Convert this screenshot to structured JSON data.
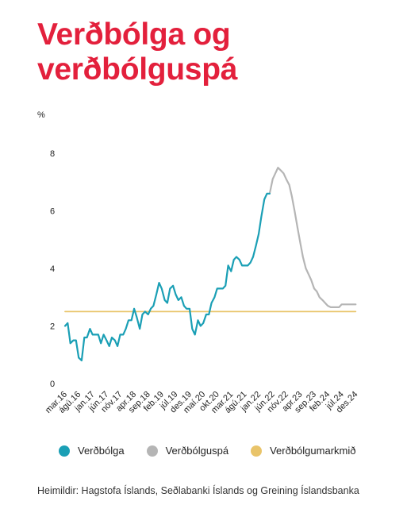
{
  "title_lines": [
    "Verðbólga og",
    "verðbólguspá"
  ],
  "source": "Heimildir: Hagstofa Íslands, Seðlabanki Íslands og Greining Íslandsbanka",
  "colors": {
    "title": "#e3203c",
    "inflation": "#1a9fb5",
    "forecast": "#b5b5b5",
    "target": "#e9c46a"
  },
  "chart_data": {
    "type": "line",
    "title": "Verðbólga og verðbólguspá",
    "ylabel": "%",
    "xlabel": "",
    "ylim": [
      0,
      8
    ],
    "yticks": [
      0,
      2,
      4,
      6,
      8
    ],
    "xlim": [
      2016.17,
      2024.96
    ],
    "xtick_labels": [
      {
        "label": "mar.16",
        "x": 2016.17
      },
      {
        "label": "ágú.16",
        "x": 2016.58
      },
      {
        "label": "jan.17",
        "x": 2017.0
      },
      {
        "label": "jún.17",
        "x": 2017.42
      },
      {
        "label": "nóv.17",
        "x": 2017.83
      },
      {
        "label": "apr.18",
        "x": 2018.25
      },
      {
        "label": "sep.18",
        "x": 2018.67
      },
      {
        "label": "feb.19",
        "x": 2019.08
      },
      {
        "label": "júl.19",
        "x": 2019.5
      },
      {
        "label": "des.19",
        "x": 2019.92
      },
      {
        "label": "maí.20",
        "x": 2020.33
      },
      {
        "label": "okt.20",
        "x": 2020.75
      },
      {
        "label": "mar.21",
        "x": 2021.17
      },
      {
        "label": "ágú.21",
        "x": 2021.58
      },
      {
        "label": "jan.22",
        "x": 2022.0
      },
      {
        "label": "jún.22",
        "x": 2022.42
      },
      {
        "label": "nóv.22",
        "x": 2022.83
      },
      {
        "label": "apr.23",
        "x": 2023.25
      },
      {
        "label": "sep.23",
        "x": 2023.67
      },
      {
        "label": "feb.24",
        "x": 2024.08
      },
      {
        "label": "júl.24",
        "x": 2024.5
      },
      {
        "label": "des.24",
        "x": 2024.92
      }
    ],
    "legend_position": "bottom",
    "grid": false,
    "series": [
      {
        "name": "Verðbólga",
        "color": "#1a9fb5",
        "points": [
          [
            2016.17,
            2.0
          ],
          [
            2016.25,
            2.1
          ],
          [
            2016.33,
            1.4
          ],
          [
            2016.42,
            1.5
          ],
          [
            2016.5,
            1.5
          ],
          [
            2016.58,
            0.9
          ],
          [
            2016.67,
            0.8
          ],
          [
            2016.75,
            1.6
          ],
          [
            2016.83,
            1.6
          ],
          [
            2016.92,
            1.9
          ],
          [
            2017.0,
            1.7
          ],
          [
            2017.08,
            1.7
          ],
          [
            2017.17,
            1.7
          ],
          [
            2017.25,
            1.4
          ],
          [
            2017.33,
            1.7
          ],
          [
            2017.42,
            1.5
          ],
          [
            2017.5,
            1.3
          ],
          [
            2017.58,
            1.6
          ],
          [
            2017.67,
            1.5
          ],
          [
            2017.75,
            1.3
          ],
          [
            2017.83,
            1.7
          ],
          [
            2017.92,
            1.7
          ],
          [
            2018.0,
            1.9
          ],
          [
            2018.08,
            2.2
          ],
          [
            2018.17,
            2.2
          ],
          [
            2018.25,
            2.6
          ],
          [
            2018.33,
            2.3
          ],
          [
            2018.42,
            1.9
          ],
          [
            2018.5,
            2.4
          ],
          [
            2018.58,
            2.5
          ],
          [
            2018.67,
            2.4
          ],
          [
            2018.75,
            2.6
          ],
          [
            2018.83,
            2.7
          ],
          [
            2018.92,
            3.1
          ],
          [
            2019.0,
            3.5
          ],
          [
            2019.08,
            3.3
          ],
          [
            2019.17,
            2.9
          ],
          [
            2019.25,
            2.8
          ],
          [
            2019.33,
            3.3
          ],
          [
            2019.42,
            3.4
          ],
          [
            2019.5,
            3.1
          ],
          [
            2019.58,
            2.9
          ],
          [
            2019.67,
            3.0
          ],
          [
            2019.75,
            2.7
          ],
          [
            2019.83,
            2.6
          ],
          [
            2019.92,
            2.6
          ],
          [
            2020.0,
            1.9
          ],
          [
            2020.08,
            1.7
          ],
          [
            2020.17,
            2.2
          ],
          [
            2020.25,
            2.0
          ],
          [
            2020.33,
            2.1
          ],
          [
            2020.42,
            2.4
          ],
          [
            2020.5,
            2.4
          ],
          [
            2020.58,
            2.8
          ],
          [
            2020.67,
            3.0
          ],
          [
            2020.75,
            3.3
          ],
          [
            2020.83,
            3.3
          ],
          [
            2020.92,
            3.3
          ],
          [
            2021.0,
            3.4
          ],
          [
            2021.08,
            4.1
          ],
          [
            2021.17,
            3.9
          ],
          [
            2021.25,
            4.3
          ],
          [
            2021.33,
            4.4
          ],
          [
            2021.42,
            4.3
          ],
          [
            2021.5,
            4.1
          ],
          [
            2021.58,
            4.1
          ],
          [
            2021.67,
            4.1
          ],
          [
            2021.75,
            4.2
          ],
          [
            2021.83,
            4.4
          ],
          [
            2021.92,
            4.8
          ],
          [
            2022.0,
            5.2
          ],
          [
            2022.08,
            5.8
          ],
          [
            2022.17,
            6.4
          ],
          [
            2022.25,
            6.6
          ],
          [
            2022.33,
            6.6
          ]
        ]
      },
      {
        "name": "Verðbólguspá",
        "color": "#b5b5b5",
        "points": [
          [
            2022.33,
            6.6
          ],
          [
            2022.42,
            7.1
          ],
          [
            2022.5,
            7.3
          ],
          [
            2022.58,
            7.5
          ],
          [
            2022.67,
            7.4
          ],
          [
            2022.75,
            7.3
          ],
          [
            2022.83,
            7.1
          ],
          [
            2022.92,
            6.9
          ],
          [
            2023.0,
            6.5
          ],
          [
            2023.08,
            6.0
          ],
          [
            2023.17,
            5.4
          ],
          [
            2023.25,
            4.9
          ],
          [
            2023.33,
            4.4
          ],
          [
            2023.42,
            4.0
          ],
          [
            2023.5,
            3.8
          ],
          [
            2023.58,
            3.6
          ],
          [
            2023.67,
            3.3
          ],
          [
            2023.75,
            3.2
          ],
          [
            2023.83,
            3.0
          ],
          [
            2023.92,
            2.9
          ],
          [
            2024.0,
            2.8
          ],
          [
            2024.08,
            2.7
          ],
          [
            2024.17,
            2.65
          ],
          [
            2024.25,
            2.65
          ],
          [
            2024.33,
            2.65
          ],
          [
            2024.42,
            2.65
          ],
          [
            2024.5,
            2.75
          ],
          [
            2024.58,
            2.75
          ],
          [
            2024.67,
            2.75
          ],
          [
            2024.75,
            2.75
          ],
          [
            2024.83,
            2.75
          ],
          [
            2024.92,
            2.75
          ]
        ]
      },
      {
        "name": "Verðbólgumarkmið",
        "color": "#e9c46a",
        "points": [
          [
            2016.17,
            2.5
          ],
          [
            2024.92,
            2.5
          ]
        ]
      }
    ]
  }
}
